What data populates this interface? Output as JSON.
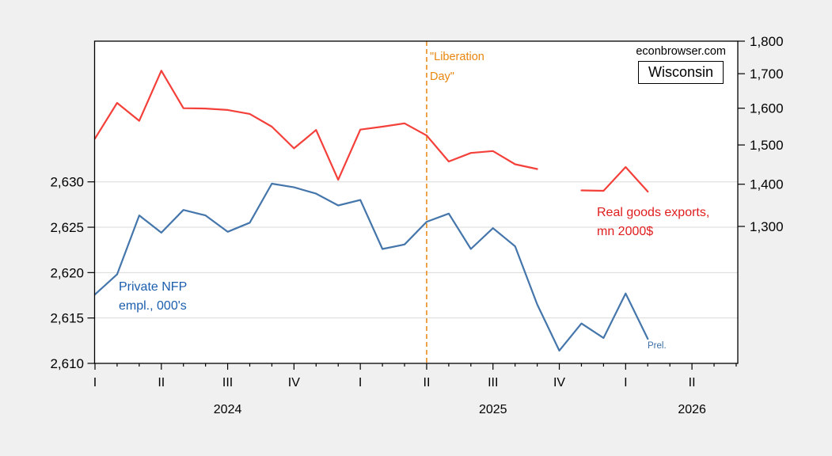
{
  "page": {
    "background": "#f0f0f0"
  },
  "branding": {
    "site": "econbrowser.com",
    "region_box": "Wisconsin"
  },
  "annotations": {
    "liberation_day": "\"Liberation\nDay\"",
    "nfp_label": "Private NFP\nempl., 000's",
    "exports_label": "Real goods exports,\nmn 2000$",
    "prelim": "Prel."
  },
  "colors": {
    "background": "#f0f0f0",
    "plot_background": "#ffffff",
    "frame": "#000000",
    "gridline": "#d9d9d9",
    "nfp_line": "#4576ab",
    "nfp_text": "#1b5ead",
    "exports_line": "#f4403a",
    "exports_text": "#e01d1d",
    "event_line": "#e8860e"
  },
  "chart_data": {
    "type": "line",
    "title": "",
    "x_monthly": [
      "2024-01",
      "2024-02",
      "2024-03",
      "2024-04",
      "2024-05",
      "2024-06",
      "2024-07",
      "2024-08",
      "2024-09",
      "2024-10",
      "2024-11",
      "2024-12",
      "2025-01",
      "2025-02",
      "2025-03",
      "2025-04",
      "2025-05",
      "2025-06",
      "2025-07",
      "2025-08",
      "2025-09",
      "2025-10",
      "2025-11",
      "2025-12",
      "2026-01",
      "2026-02"
    ],
    "series": [
      {
        "name": "Private NFP empl., 000's",
        "axis": "left",
        "color": "#4576ab",
        "values": [
          2617.6,
          2619.8,
          2626.3,
          2624.4,
          2626.9,
          2626.3,
          2624.5,
          2625.5,
          2629.8,
          2629.4,
          2628.7,
          2627.4,
          2628.0,
          2622.6,
          2623.1,
          2625.6,
          2626.5,
          2622.6,
          2624.9,
          2622.9,
          2616.5,
          2611.4,
          2614.4,
          2612.8,
          2617.7,
          2612.7
        ]
      },
      {
        "name": "Real goods exports, mn 2000$",
        "axis": "right",
        "color": "#f4403a",
        "values": [
          1517,
          1615,
          1565,
          1709,
          1600,
          1599,
          1595,
          1584,
          1549,
          1491,
          1540,
          1411,
          1541,
          1549,
          1558,
          1525,
          1457,
          1479,
          1484,
          1450,
          1438,
          null,
          1385,
          1384,
          1443,
          1382
        ]
      }
    ],
    "left_axis": {
      "scale": "linear",
      "ticks": [
        2610,
        2615,
        2620,
        2625,
        2630
      ],
      "tick_labels": [
        "2,610",
        "2,615",
        "2,620",
        "2,625",
        "2,630"
      ],
      "min": 2610,
      "max": 2645.5
    },
    "right_axis": {
      "scale": "log",
      "ticks": [
        1800,
        1700,
        1600,
        1500,
        1400,
        1300
      ],
      "tick_labels": [
        "1,800",
        "1,700",
        "1,600",
        "1,500",
        "1,400",
        "1,300"
      ],
      "top_value": 1800,
      "value_at_1300_y": 1300
    },
    "x_axis": {
      "axis_months_total": 30,
      "quarter_ticks": [
        {
          "i": 0,
          "label": "I"
        },
        {
          "i": 3,
          "label": "II"
        },
        {
          "i": 6,
          "label": "III"
        },
        {
          "i": 9,
          "label": "IV"
        },
        {
          "i": 12,
          "label": "I"
        },
        {
          "i": 15,
          "label": "II"
        },
        {
          "i": 18,
          "label": "III"
        },
        {
          "i": 21,
          "label": "IV"
        },
        {
          "i": 24,
          "label": "I"
        },
        {
          "i": 27,
          "label": "II"
        }
      ],
      "year_labels": [
        {
          "i": 6,
          "label": "2024"
        },
        {
          "i": 18,
          "label": "2025"
        },
        {
          "i": 27,
          "label": "2026"
        }
      ]
    },
    "event_line": {
      "month": "2025-04",
      "month_index": 15,
      "label": "\"Liberation Day\"",
      "color": "#e8860e"
    },
    "legend_position": "in-plot text labels",
    "grid": "horizontal only"
  }
}
